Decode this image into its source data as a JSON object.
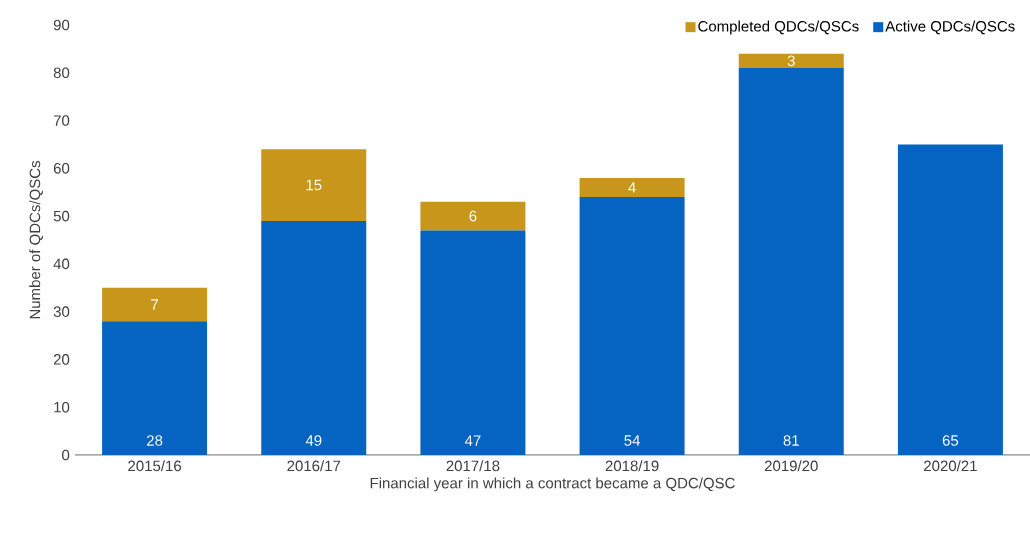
{
  "chart_data": {
    "type": "bar",
    "stacked": true,
    "categories": [
      "2015/16",
      "2016/17",
      "2017/18",
      "2018/19",
      "2019/20",
      "2020/21"
    ],
    "series": [
      {
        "name": "Active QDCs/QSCs",
        "color": "#0563c1",
        "values": [
          28,
          49,
          47,
          54,
          81,
          65
        ]
      },
      {
        "name": "Completed QDCs/QSCs",
        "color": "#c8961a",
        "values": [
          7,
          15,
          6,
          4,
          3,
          null
        ]
      }
    ],
    "xlabel": "Financial year in which a contract became a QDC/QSC",
    "ylabel": "Number of QDCs/QSCs",
    "ylim": [
      0,
      90
    ],
    "yticks": [
      0,
      10,
      20,
      30,
      40,
      50,
      60,
      70,
      80,
      90
    ],
    "legend": "top right",
    "data_labels": true
  }
}
